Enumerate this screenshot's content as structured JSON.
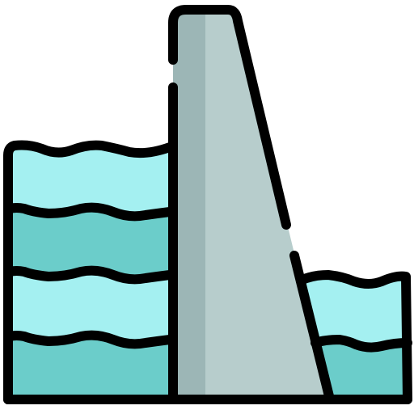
{
  "icon": {
    "name": "dam-icon",
    "colors": {
      "outline": "#000000",
      "water_light": "#a4f0f1",
      "water_dark": "#6bcdca",
      "wall_light": "#b7cdcc",
      "wall_shadow": "#9cb6b6",
      "background": "#ffffff"
    }
  }
}
